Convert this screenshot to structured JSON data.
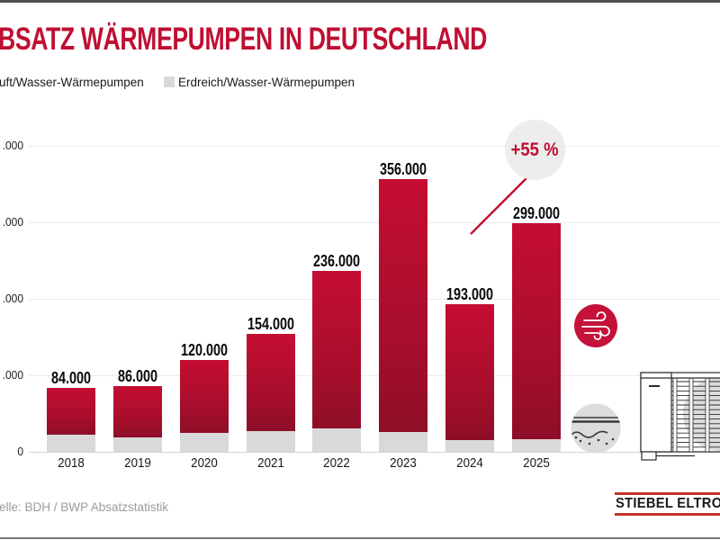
{
  "page": {
    "title": "BSATZ WÄRMEPUMPEN IN DEUTSCHLAND",
    "source": "elle: BDH / BWP Absatzstatistik",
    "logo_text": "STIEBEL ELTRON"
  },
  "legend": {
    "left_label": "uft/Wasser-Wärmepumpen",
    "right_label": "Erdreich/Wasser-Wärmepumpen",
    "left_color": "#c00e32",
    "right_color": "#d9d9d9"
  },
  "annotation": {
    "label": "+55 %"
  },
  "colors": {
    "title_red": "#c00e32",
    "bar_red": "#c50d33",
    "bar_gray": "#d9d9d9",
    "wind_circle_red": "#c41239",
    "ground_circle_gray": "#dcdcdc",
    "annotation_circle_gray": "#ededed",
    "gridline": "#ebebeb",
    "logo_line_red": "#c8342b"
  },
  "icons": [
    "wind-icon",
    "ground-icon",
    "heat-pump-illustration",
    "growth-arrow-icon"
  ],
  "chart_data": {
    "type": "bar",
    "stacked": true,
    "title": "BSATZ WÄRMEPUMPEN IN DEUTSCHLAND",
    "categories": [
      "2018",
      "2019",
      "2020",
      "2021",
      "2022",
      "2023",
      "2024",
      "2025"
    ],
    "series": [
      {
        "name": "Luft/Wasser-Wärmepumpen",
        "color": "#c50d33",
        "values": [
          62000,
          67000,
          95000,
          127000,
          206000,
          330000,
          178000,
          283000
        ]
      },
      {
        "name": "Erdreich/Wasser-Wärmepumpen",
        "color": "#d9d9d9",
        "values": [
          22000,
          19000,
          25000,
          27000,
          30000,
          26000,
          15000,
          16000
        ]
      }
    ],
    "totals": [
      84000,
      86000,
      120000,
      154000,
      236000,
      356000,
      193000,
      299000
    ],
    "total_labels": [
      "84.000",
      "86.000",
      "120.000",
      "154.000",
      "236.000",
      "356.000",
      "193.000",
      "299.000"
    ],
    "annotation": "+55 %",
    "xlabel": "",
    "ylabel": "",
    "ylim": [
      0,
      400000
    ],
    "y_tick_values": [
      400000,
      300000,
      200000,
      100000,
      0
    ],
    "y_tick_labels": [
      ".000",
      ".000",
      ".000",
      ".000",
      "0"
    ],
    "grid": true,
    "legend_position": "top-left",
    "source": "elle: BDH / BWP Absatzstatistik"
  }
}
